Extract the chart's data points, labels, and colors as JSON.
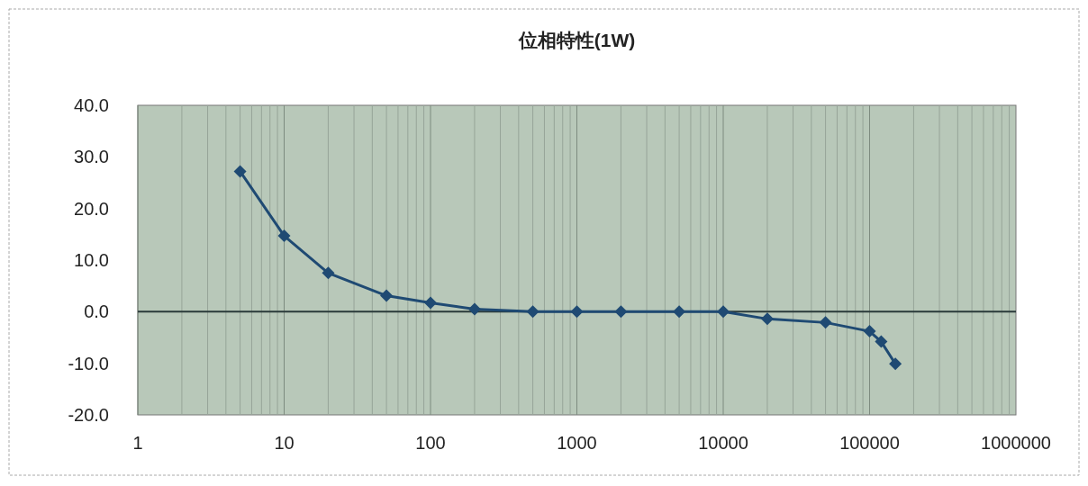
{
  "chart_data": {
    "type": "line",
    "title": "位相特性(1W)",
    "x": [
      5,
      10,
      20,
      50,
      100,
      200,
      500,
      1000,
      2000,
      5000,
      10000,
      20000,
      50000,
      100000,
      120000,
      150000
    ],
    "series": [
      {
        "color": "#1f4a73",
        "values": [
          27.2,
          14.7,
          7.5,
          3.1,
          1.7,
          0.5,
          0,
          0,
          0,
          0,
          0,
          -1.4,
          -2.1,
          -3.8,
          -5.8,
          -10.1
        ]
      }
    ],
    "log": "x",
    "xlim": [
      1,
      1000000
    ],
    "xticks": [
      1,
      10,
      100,
      1000,
      10000,
      100000,
      1000000
    ],
    "ylim": [
      -20,
      40
    ],
    "yticks": [
      {
        "value": -20,
        "label": "-20.0"
      },
      {
        "value": -10,
        "label": "-10.0"
      },
      {
        "value": 0,
        "label": "0.0"
      },
      {
        "value": 10,
        "label": "10.0"
      },
      {
        "value": 20,
        "label": "20.0"
      },
      {
        "value": 30,
        "label": "30.0"
      },
      {
        "value": 40,
        "label": "40.0"
      }
    ],
    "ref_lines": [
      {
        "axis": "y",
        "value": 0,
        "color": "#2a3a3a"
      }
    ],
    "grid": "x",
    "marker": "diamond",
    "line_style": "solid"
  }
}
